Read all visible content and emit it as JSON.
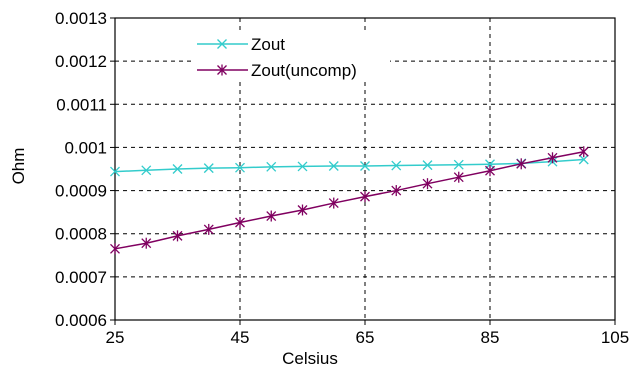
{
  "chart_data": {
    "type": "line",
    "title": "",
    "xlabel": "Celsius",
    "ylabel": "Ohm",
    "xlim": [
      25,
      105
    ],
    "ylim": [
      0.0006,
      0.0013
    ],
    "x_ticks": [
      25,
      45,
      65,
      85,
      105
    ],
    "x_tick_labels": [
      "25",
      "45",
      "65",
      "85",
      "105"
    ],
    "y_ticks": [
      0.0006,
      0.0007,
      0.0008,
      0.0009,
      0.001,
      0.0011,
      0.0012,
      0.0013
    ],
    "y_tick_labels": [
      "0.0006",
      "0.0007",
      "0.0008",
      "0.0009",
      "0.001",
      "0.0011",
      "0.0012",
      "0.0013"
    ],
    "grid": "dashed",
    "legend_position": "top-left",
    "x": [
      25,
      30,
      35,
      40,
      45,
      50,
      55,
      60,
      65,
      70,
      75,
      80,
      85,
      90,
      95,
      100
    ],
    "series": [
      {
        "name": "Zout",
        "color": "#33CCCC",
        "marker": "x",
        "values": [
          0.000944,
          0.000947,
          0.00095,
          0.000952,
          0.000953,
          0.000955,
          0.000956,
          0.000957,
          0.000957,
          0.000958,
          0.000959,
          0.00096,
          0.000961,
          0.000963,
          0.000967,
          0.000972
        ]
      },
      {
        "name": "Zout(uncomp)",
        "color": "#800060",
        "marker": "asterisk",
        "values": [
          0.000765,
          0.000778,
          0.000795,
          0.00081,
          0.000826,
          0.000841,
          0.000855,
          0.000871,
          0.000886,
          0.0009,
          0.000916,
          0.000931,
          0.000946,
          0.000962,
          0.000976,
          0.00099
        ]
      }
    ]
  }
}
